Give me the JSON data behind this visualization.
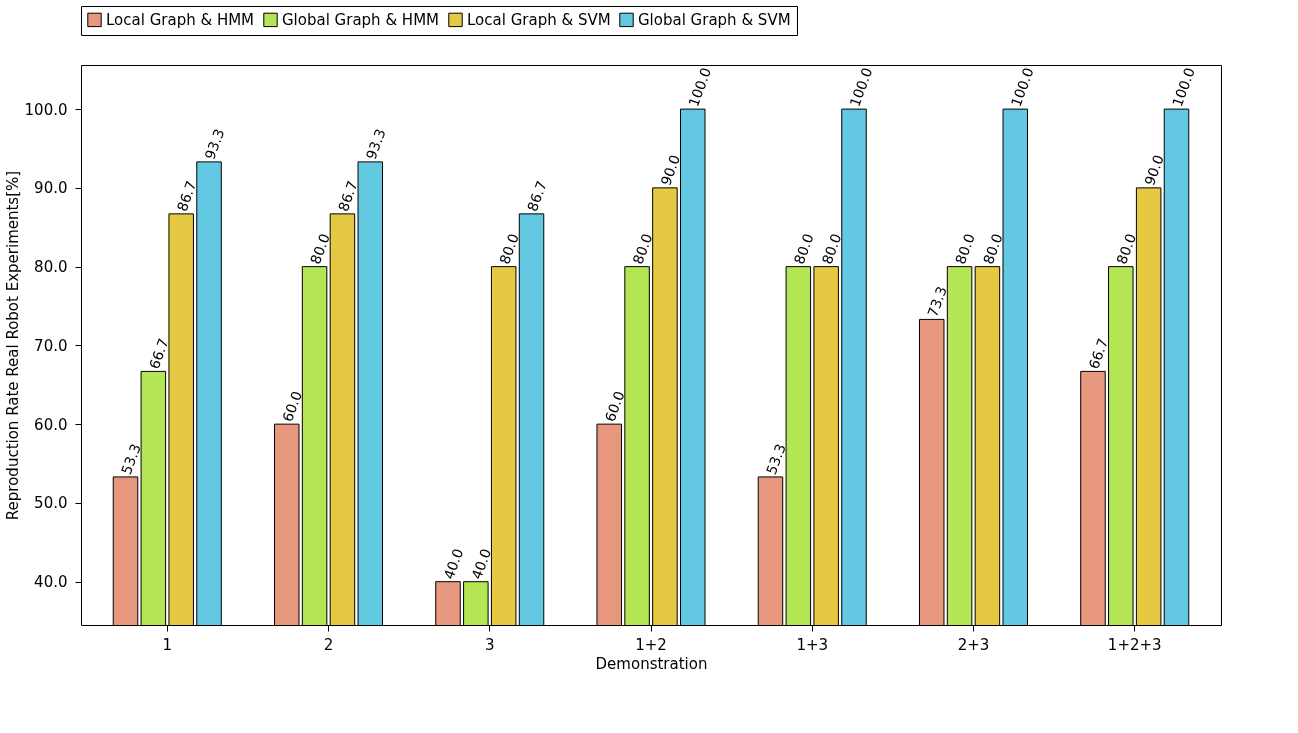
{
  "chart_data": {
    "type": "bar",
    "xlabel": "Demonstration",
    "ylabel": "Reproduction Rate Real Robot Experiments[%]",
    "categories": [
      "1",
      "2",
      "3",
      "1+2",
      "1+3",
      "2+3",
      "1+2+3"
    ],
    "series": [
      {
        "name": "Local Graph & HMM",
        "color": "#e8977f",
        "values": [
          53.3,
          60.0,
          40.0,
          60.0,
          53.3,
          73.3,
          66.7
        ],
        "value_labels": [
          "53.3",
          "60.0",
          "40.0",
          "60.0",
          "53.3",
          "73.3",
          "66.7"
        ]
      },
      {
        "name": "Global Graph & HMM",
        "color": "#b4e554",
        "values": [
          66.7,
          80.0,
          40.0,
          80.0,
          80.0,
          80.0,
          80.0
        ],
        "value_labels": [
          "66.7",
          "80.0",
          "40.0",
          "80.0",
          "80.0",
          "80.0",
          "80.0"
        ]
      },
      {
        "name": "Local Graph & SVM",
        "color": "#e5c943",
        "values": [
          86.7,
          86.7,
          80.0,
          90.0,
          80.0,
          80.0,
          90.0
        ],
        "value_labels": [
          "86.7",
          "86.7",
          "80.0",
          "90.0",
          "80.0",
          "80.0",
          "90.0"
        ]
      },
      {
        "name": "Global Graph & SVM",
        "color": "#63c9e2",
        "values": [
          93.3,
          93.3,
          86.7,
          100.0,
          100.0,
          100.0,
          100.0
        ],
        "value_labels": [
          "93.3",
          "93.3",
          "86.7",
          "100.0",
          "100.0",
          "100.0",
          "100.0"
        ]
      }
    ],
    "ylim": [
      34.5,
      105.6
    ],
    "yticks": [
      {
        "value": 40,
        "label": "40.0"
      },
      {
        "value": 50,
        "label": "50.0"
      },
      {
        "value": 60,
        "label": "60.0"
      },
      {
        "value": 70,
        "label": "70.0"
      },
      {
        "value": 80,
        "label": "80.0"
      },
      {
        "value": 90,
        "label": "90.0"
      },
      {
        "value": 100,
        "label": "100.0"
      }
    ],
    "grid": false,
    "legend": "top"
  }
}
